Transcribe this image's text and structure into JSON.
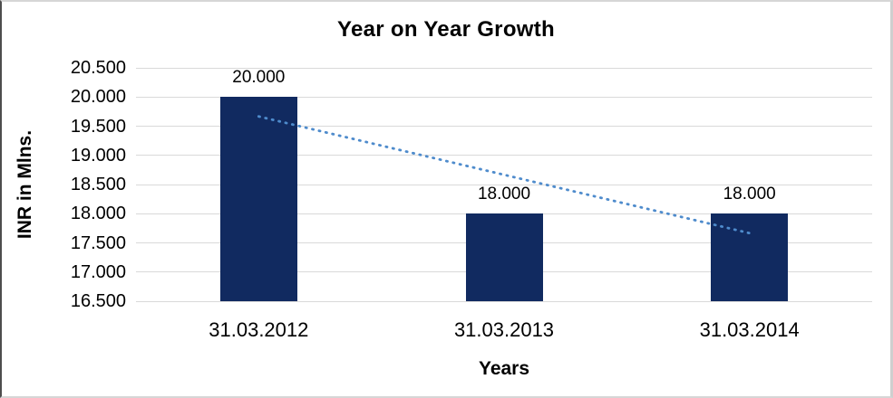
{
  "chart": {
    "title": "Year on Year Growth",
    "xlabel": "Years",
    "ylabel": "INR in Mlns."
  },
  "chart_data": {
    "type": "bar",
    "title": "Year on Year Growth",
    "xlabel": "Years",
    "ylabel": "INR in Mlns.",
    "categories": [
      "31.03.2012",
      "31.03.2013",
      "31.03.2014"
    ],
    "values": [
      20.0,
      18.0,
      18.0
    ],
    "data_labels": [
      "20.000",
      "18.000",
      "18.000"
    ],
    "ylim": [
      16.5,
      20.5
    ],
    "ytick_step": 0.5,
    "ytick_labels": [
      "20.500",
      "20.000",
      "19.500",
      "19.000",
      "18.500",
      "18.000",
      "17.500",
      "17.000",
      "16.500"
    ],
    "grid": true,
    "legend": "none",
    "bar_color": "#112A60",
    "gridline_color": "#D9D9D9",
    "trendline": {
      "type": "linear",
      "style": "dotted",
      "color": "#4E8BCC",
      "start_value": 19.667,
      "end_value": 17.667
    }
  }
}
